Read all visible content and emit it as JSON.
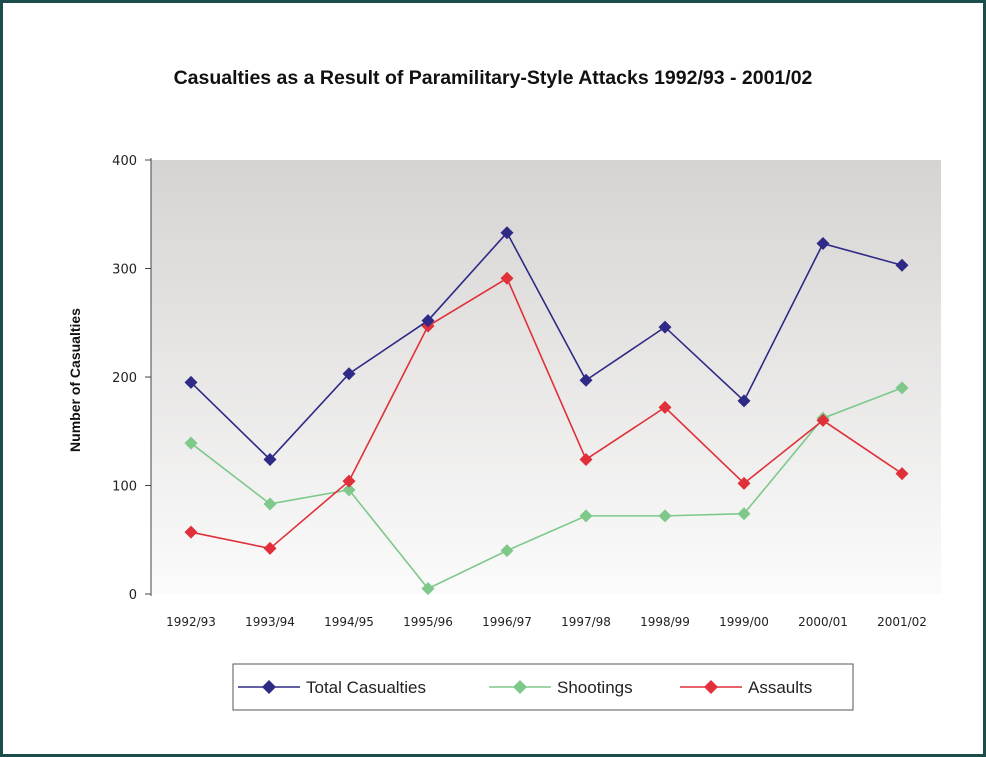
{
  "chart_data": {
    "type": "line",
    "title": "Casualties as a Result of Paramilitary-Style Attacks 1992/93 - 2001/02",
    "xlabel": "",
    "ylabel": "Number of Casualties",
    "ylim": [
      0,
      400
    ],
    "yticks": [
      "0",
      "100",
      "200",
      "300",
      "400"
    ],
    "categories": [
      "1992/93",
      "1993/94",
      "1994/95",
      "1995/96",
      "1996/97",
      "1997/98",
      "1998/99",
      "1999/00",
      "2000/01",
      "2001/02"
    ],
    "grid": false,
    "legend_position": "bottom",
    "series": [
      {
        "name": "Total Casualties",
        "color": "#2e2a86",
        "values": [
          195,
          124,
          203,
          252,
          333,
          197,
          246,
          178,
          323,
          303
        ]
      },
      {
        "name": "Shootings",
        "color": "#7ec98a",
        "values": [
          139,
          83,
          96,
          5,
          40,
          72,
          72,
          74,
          162,
          190
        ]
      },
      {
        "name": "Assaults",
        "color": "#e0303a",
        "values": [
          57,
          42,
          104,
          247,
          291,
          124,
          172,
          102,
          160,
          111
        ]
      }
    ]
  }
}
